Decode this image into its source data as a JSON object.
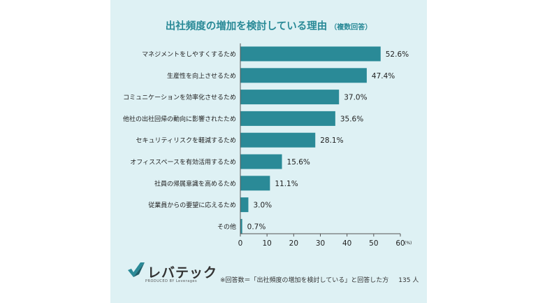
{
  "chart_data": {
    "type": "bar",
    "orientation": "horizontal",
    "title": "出社頻度の増加を検討している理由",
    "subtitle": "（複数回答）",
    "categories": [
      "マネジメントをしやすくするため",
      "生産性を向上させるため",
      "コミュニケーションを効率化させるため",
      "他社の出社回帰の動向に影響されたため",
      "セキュリティリスクを軽減するため",
      "オフィススペースを有効活用するため",
      "社員の帰属意識を高めるため",
      "従業員からの要望に応えるため",
      "その他"
    ],
    "values": [
      52.6,
      47.4,
      37.0,
      35.6,
      28.1,
      15.6,
      11.1,
      3.0,
      0.7
    ],
    "value_labels": [
      "52.6%",
      "47.4%",
      "37.0%",
      "35.6%",
      "28.1%",
      "15.6%",
      "11.1%",
      "3.0%",
      "0.7%"
    ],
    "xlim": [
      0,
      60
    ],
    "x_ticks": [
      "0",
      "10",
      "20",
      "30",
      "40",
      "50",
      "60"
    ],
    "x_unit": "(%)",
    "grid": false,
    "bar_color": "#2a8a97"
  },
  "footer": {
    "note": "※回答数＝「出社頻度の増加を検討している」と回答した方",
    "count": "135 人"
  },
  "logo": {
    "name": "レバテック",
    "tagline": "PRODUCED BY Leverages"
  },
  "colors": {
    "panel": "#def1f4",
    "accent": "#2a8a97"
  }
}
